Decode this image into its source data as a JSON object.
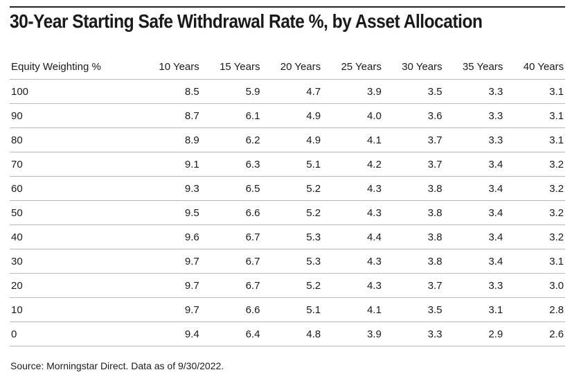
{
  "chart_data": {
    "type": "table",
    "title": "30-Year Starting Safe Withdrawal Rate %, by Asset Allocation",
    "columns": [
      "Equity Weighting %",
      "10 Years",
      "15 Years",
      "20 Years",
      "25 Years",
      "30 Years",
      "35 Years",
      "40 Years"
    ],
    "rows": [
      {
        "equity": "100",
        "values": [
          "8.5",
          "5.9",
          "4.7",
          "3.9",
          "3.5",
          "3.3",
          "3.1"
        ]
      },
      {
        "equity": "90",
        "values": [
          "8.7",
          "6.1",
          "4.9",
          "4.0",
          "3.6",
          "3.3",
          "3.1"
        ]
      },
      {
        "equity": "80",
        "values": [
          "8.9",
          "6.2",
          "4.9",
          "4.1",
          "3.7",
          "3.3",
          "3.1"
        ]
      },
      {
        "equity": "70",
        "values": [
          "9.1",
          "6.3",
          "5.1",
          "4.2",
          "3.7",
          "3.4",
          "3.2"
        ]
      },
      {
        "equity": "60",
        "values": [
          "9.3",
          "6.5",
          "5.2",
          "4.3",
          "3.8",
          "3.4",
          "3.2"
        ]
      },
      {
        "equity": "50",
        "values": [
          "9.5",
          "6.6",
          "5.2",
          "4.3",
          "3.8",
          "3.4",
          "3.2"
        ]
      },
      {
        "equity": "40",
        "values": [
          "9.6",
          "6.7",
          "5.3",
          "4.4",
          "3.8",
          "3.4",
          "3.2"
        ]
      },
      {
        "equity": "30",
        "values": [
          "9.7",
          "6.7",
          "5.3",
          "4.3",
          "3.8",
          "3.4",
          "3.1"
        ]
      },
      {
        "equity": "20",
        "values": [
          "9.7",
          "6.7",
          "5.2",
          "4.3",
          "3.7",
          "3.3",
          "3.0"
        ]
      },
      {
        "equity": "10",
        "values": [
          "9.7",
          "6.6",
          "5.1",
          "4.1",
          "3.5",
          "3.1",
          "2.8"
        ]
      },
      {
        "equity": "0",
        "values": [
          "9.4",
          "6.4",
          "4.8",
          "3.9",
          "3.3",
          "2.9",
          "2.6"
        ]
      }
    ],
    "source": "Source: Morningstar Direct. Data as of 9/30/2022."
  }
}
